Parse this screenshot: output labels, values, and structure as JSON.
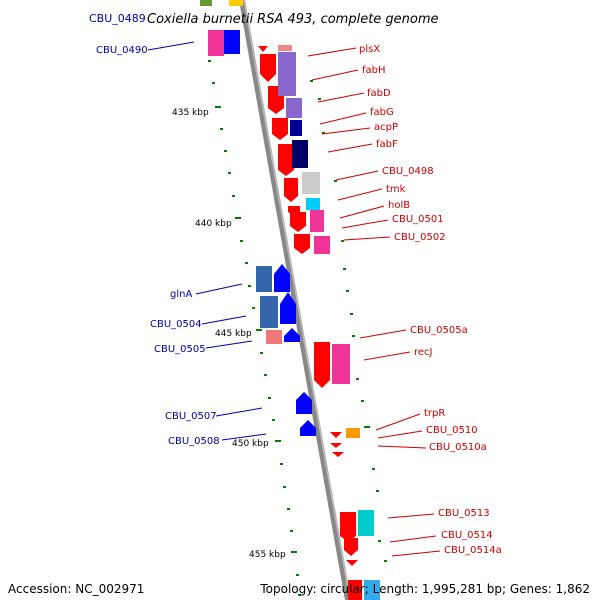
{
  "title": "Coxiella burnetii RSA 493, complete genome",
  "title_gene": "CBU_0489",
  "accession": "Accession: NC_002971",
  "topology": "Topology: circular; Length: 1,995,281 bp; Genes: 1,862",
  "kbp_ticks": [
    "435 kbp",
    "440 kbp",
    "445 kbp",
    "450 kbp",
    "455 kbp"
  ],
  "genes": [
    {
      "name": "CBU_0490",
      "strand": "minus"
    },
    {
      "name": "plsX",
      "strand": "plus"
    },
    {
      "name": "fabH",
      "strand": "plus"
    },
    {
      "name": "fabD",
      "strand": "plus"
    },
    {
      "name": "fabG",
      "strand": "plus"
    },
    {
      "name": "acpP",
      "strand": "plus"
    },
    {
      "name": "fabF",
      "strand": "plus"
    },
    {
      "name": "CBU_0498",
      "strand": "plus"
    },
    {
      "name": "tmk",
      "strand": "plus"
    },
    {
      "name": "holB",
      "strand": "plus"
    },
    {
      "name": "CBU_0501",
      "strand": "plus"
    },
    {
      "name": "CBU_0502",
      "strand": "plus"
    },
    {
      "name": "glnA",
      "strand": "minus"
    },
    {
      "name": "CBU_0504",
      "strand": "minus"
    },
    {
      "name": "CBU_0505",
      "strand": "minus"
    },
    {
      "name": "CBU_0505a",
      "strand": "plus"
    },
    {
      "name": "recJ",
      "strand": "plus"
    },
    {
      "name": "CBU_0507",
      "strand": "minus"
    },
    {
      "name": "CBU_0508",
      "strand": "minus"
    },
    {
      "name": "trpR",
      "strand": "plus"
    },
    {
      "name": "CBU_0510",
      "strand": "plus"
    },
    {
      "name": "CBU_0510a",
      "strand": "plus"
    },
    {
      "name": "CBU_0513",
      "strand": "plus"
    },
    {
      "name": "CBU_0514",
      "strand": "plus"
    },
    {
      "name": "CBU_0514a",
      "strand": "plus"
    }
  ],
  "colors": {
    "backbone": "#888888",
    "plus_arrow": "#ff0000",
    "minus_arrow": "#0000ff",
    "plus_label": "#cc0000",
    "minus_label": "#0000aa",
    "tick": "#008000"
  }
}
